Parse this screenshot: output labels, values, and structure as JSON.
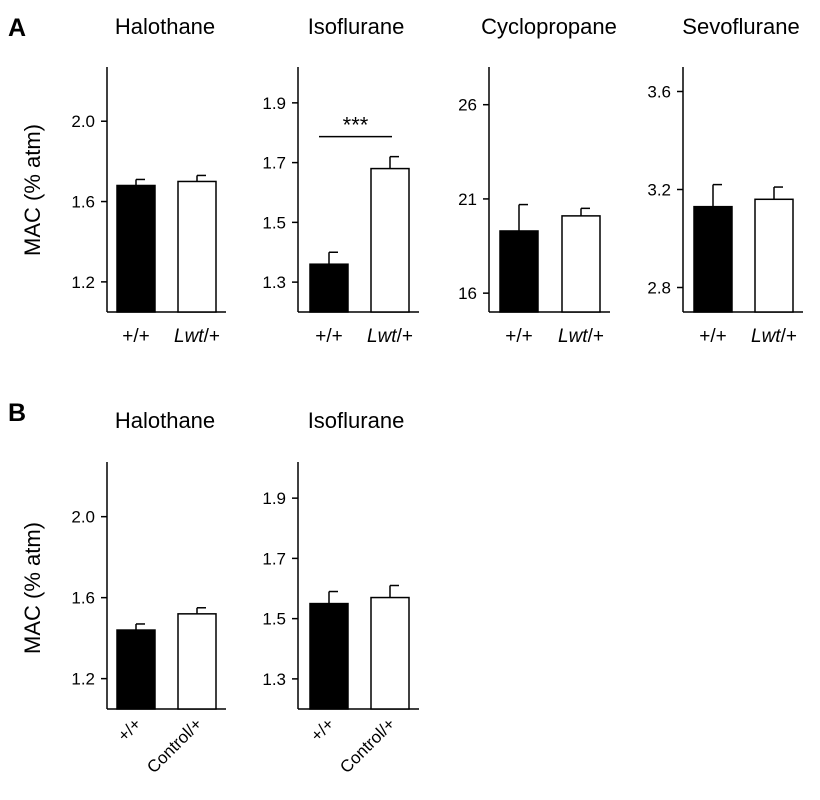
{
  "panels": [
    {
      "letter": "A",
      "ylabel": "MAC (% atm)"
    },
    {
      "letter": "B",
      "ylabel": "MAC (% atm)"
    }
  ],
  "colors": {
    "bar_a": "#000000",
    "bar_b": "#ffffff",
    "stroke": "#000000"
  },
  "chart_data": [
    {
      "type": "bar",
      "panel": "A",
      "title": "Halothane",
      "categories": [
        "+/+",
        "Lwt/+"
      ],
      "category_italic": [
        null,
        "Lwt"
      ],
      "values": [
        1.68,
        1.7
      ],
      "errors": [
        0.03,
        0.03
      ],
      "ylim": [
        1.05,
        2.27
      ],
      "yticks": [
        1.2,
        1.6,
        2.0
      ],
      "ytick_labels": [
        "1.2",
        "1.6",
        "2.0"
      ],
      "annotation": ""
    },
    {
      "type": "bar",
      "panel": "A",
      "title": "Isoflurane",
      "categories": [
        "+/+",
        "Lwt/+"
      ],
      "category_italic": [
        null,
        "Lwt"
      ],
      "values": [
        1.36,
        1.68
      ],
      "errors": [
        0.04,
        0.04
      ],
      "ylim": [
        1.2,
        2.02
      ],
      "yticks": [
        1.3,
        1.5,
        1.7,
        1.9
      ],
      "ytick_labels": [
        "1.3",
        "1.5",
        "1.7",
        "1.9"
      ],
      "annotation": "***"
    },
    {
      "type": "bar",
      "panel": "A",
      "title": "Cyclopropane",
      "categories": [
        "+/+",
        "Lwt/+"
      ],
      "category_italic": [
        null,
        "Lwt"
      ],
      "values": [
        19.3,
        20.1
      ],
      "errors": [
        1.4,
        0.4
      ],
      "ylim": [
        15.0,
        28.0
      ],
      "yticks": [
        16,
        21,
        26
      ],
      "ytick_labels": [
        "16",
        "21",
        "26"
      ],
      "annotation": ""
    },
    {
      "type": "bar",
      "panel": "A",
      "title": "Sevoflurane",
      "categories": [
        "+/+",
        "Lwt/+"
      ],
      "category_italic": [
        null,
        "Lwt"
      ],
      "values": [
        3.13,
        3.16
      ],
      "errors": [
        0.09,
        0.05
      ],
      "ylim": [
        2.7,
        3.7
      ],
      "yticks": [
        2.8,
        3.2,
        3.6
      ],
      "ytick_labels": [
        "2.8",
        "3.2",
        "3.6"
      ],
      "annotation": ""
    },
    {
      "type": "bar",
      "panel": "B",
      "title": "Halothane",
      "categories": [
        "+/+",
        "Control/+"
      ],
      "category_italic": [
        null,
        null
      ],
      "values": [
        1.44,
        1.52
      ],
      "errors": [
        0.03,
        0.03
      ],
      "ylim": [
        1.05,
        2.27
      ],
      "yticks": [
        1.2,
        1.6,
        2.0
      ],
      "ytick_labels": [
        "1.2",
        "1.6",
        "2.0"
      ],
      "annotation": ""
    },
    {
      "type": "bar",
      "panel": "B",
      "title": "Isoflurane",
      "categories": [
        "+/+",
        "Control/+"
      ],
      "category_italic": [
        null,
        null
      ],
      "values": [
        1.55,
        1.57
      ],
      "errors": [
        0.04,
        0.04
      ],
      "ylim": [
        1.2,
        2.02
      ],
      "yticks": [
        1.3,
        1.5,
        1.7,
        1.9
      ],
      "ytick_labels": [
        "1.3",
        "1.5",
        "1.7",
        "1.9"
      ],
      "annotation": ""
    }
  ]
}
